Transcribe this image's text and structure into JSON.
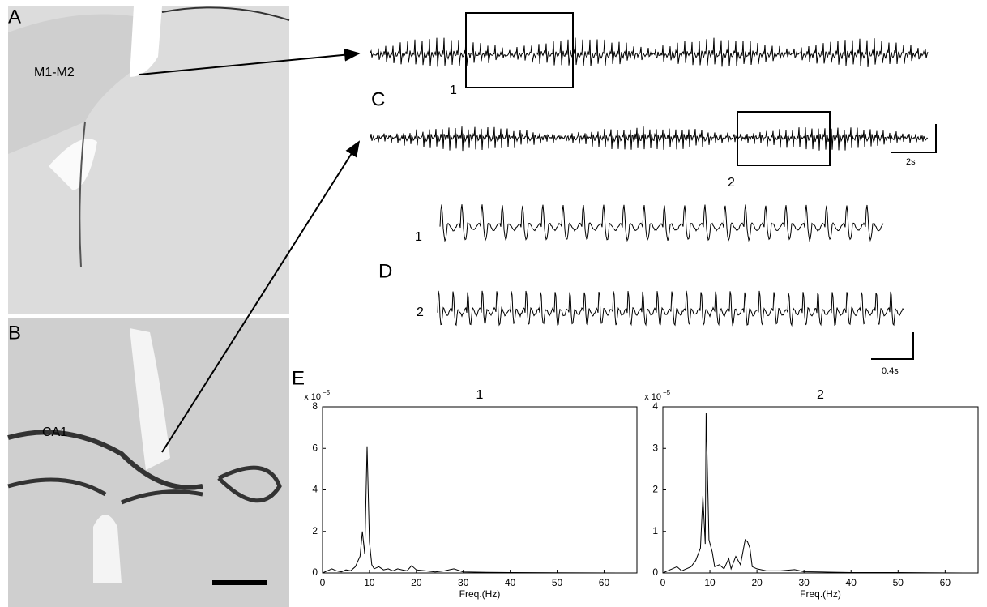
{
  "figure": {
    "panel_labels": [
      "A",
      "B",
      "C",
      "D",
      "E"
    ],
    "regions": [
      "M1-M2",
      "CA1"
    ],
    "trace_labels": [
      "1",
      "2"
    ],
    "detail_labels": [
      "1",
      "2"
    ],
    "scale_bars": [
      "2s",
      "0.4s"
    ]
  },
  "chart_data": [
    {
      "type": "line",
      "title": "1",
      "xlabel": "Freq.(Hz)",
      "multiplier": "x 10",
      "multiplier_exponent": "−5",
      "color": "#000000",
      "x": [
        0,
        1,
        2,
        3,
        4,
        5,
        6,
        7,
        8,
        8.5,
        9,
        9.5,
        10,
        10.5,
        11,
        12,
        13,
        14,
        15,
        16,
        17,
        18,
        19,
        20,
        22,
        24,
        26,
        28,
        30,
        35,
        40,
        50,
        64
      ],
      "values": [
        0,
        0.1,
        0.2,
        0.1,
        0.05,
        0.15,
        0.1,
        0.3,
        0.8,
        2.0,
        0.9,
        6.1,
        1.5,
        0.4,
        0.2,
        0.3,
        0.15,
        0.2,
        0.1,
        0.2,
        0.15,
        0.1,
        0.35,
        0.15,
        0.1,
        0.05,
        0.1,
        0.2,
        0.05,
        0.03,
        0.02,
        0.01,
        0
      ],
      "xlim": [
        0,
        67
      ],
      "ylim": [
        0,
        8
      ],
      "xticks": [
        0,
        10,
        20,
        30,
        40,
        50,
        60
      ],
      "yticks": [
        0,
        2,
        4,
        6,
        8
      ]
    },
    {
      "type": "line",
      "title": "2",
      "xlabel": "Freq.(Hz)",
      "multiplier": "x 10",
      "multiplier_exponent": "−5",
      "color": "#000000",
      "x": [
        0,
        1,
        2,
        3,
        4,
        5,
        6,
        7,
        8,
        8.5,
        9,
        9.2,
        9.8,
        10.5,
        11,
        12,
        13,
        14,
        14.5,
        15.5,
        16.5,
        17.5,
        18,
        18.5,
        19,
        20,
        22,
        25,
        28,
        30,
        35,
        40,
        50,
        64
      ],
      "values": [
        0,
        0.05,
        0.1,
        0.15,
        0.05,
        0.1,
        0.15,
        0.3,
        0.6,
        1.85,
        0.7,
        3.85,
        0.8,
        0.5,
        0.15,
        0.2,
        0.1,
        0.35,
        0.1,
        0.4,
        0.2,
        0.8,
        0.75,
        0.6,
        0.15,
        0.1,
        0.05,
        0.05,
        0.08,
        0.03,
        0.02,
        0.01,
        0.01,
        0
      ],
      "xlim": [
        0,
        67
      ],
      "ylim": [
        0,
        4
      ],
      "xticks": [
        0,
        10,
        20,
        30,
        40,
        50,
        60
      ],
      "yticks": [
        0,
        1,
        2,
        3,
        4
      ]
    }
  ]
}
